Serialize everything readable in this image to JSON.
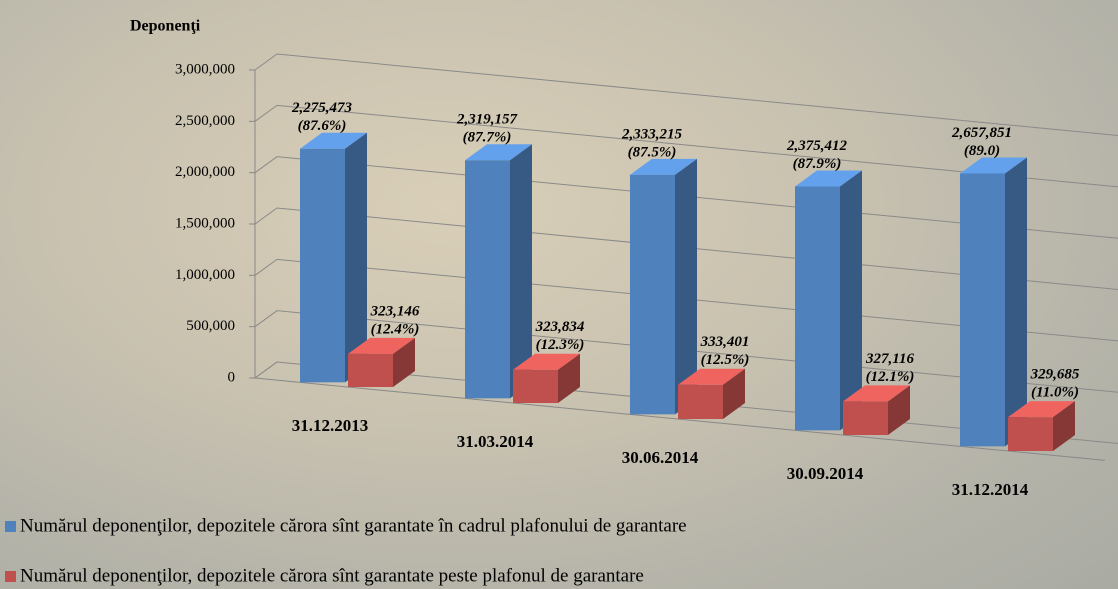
{
  "chart_data": {
    "type": "bar3d",
    "y_label": "Deponenţi",
    "categories": [
      "31.12.2013",
      "31.03.2014",
      "30.06.2014",
      "30.09.2014",
      "31.12.2014"
    ],
    "ylim": [
      0,
      3000000
    ],
    "yticks": [
      0,
      {
        "value": 500000,
        "label": "500,000"
      },
      {
        "value": 1000000,
        "label": "1,000,000"
      },
      {
        "value": 1500000,
        "label": "1,500,000"
      },
      {
        "value": 2000000,
        "label": "2,000,000"
      },
      {
        "value": 2500000,
        "label": "2,500,000"
      },
      {
        "value": 3000000,
        "label": "3,000,000"
      }
    ],
    "grid": true,
    "series": [
      {
        "name": "Numărul deponenţilor, depozitele cărora sînt garantate în cadrul plafonului de garantare",
        "color": "#4f81bd",
        "values": [
          2275473,
          2319157,
          2333215,
          2375412,
          2657851
        ],
        "value_labels": [
          "2,275,473",
          "2,319,157",
          "2,333,215",
          "2,375,412",
          "2,657,851"
        ],
        "share_labels": [
          "(87.6%)",
          "(87.7%)",
          "(87.5%)",
          "(87.9%)",
          "(89.0)"
        ]
      },
      {
        "name": "Numărul deponenţilor, depozitele cărora sînt garantate peste plafonul de garantare",
        "color": "#c0504d",
        "values": [
          323146,
          323834,
          333401,
          327116,
          329685
        ],
        "value_labels": [
          "323,146",
          "323,834",
          "333,401",
          "327,116",
          "329,685"
        ],
        "share_labels": [
          "(12.4%)",
          "(12.3%)",
          "(12.5%)",
          "(12.1%)",
          "(11.0%)"
        ]
      }
    ]
  }
}
